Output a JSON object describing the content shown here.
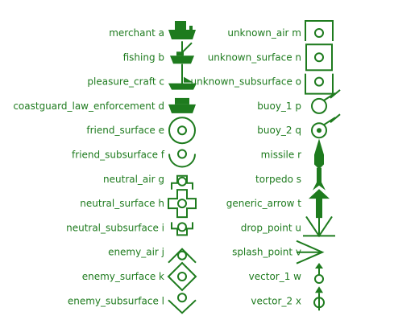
{
  "colors": {
    "symbol": "#1e7b1e"
  },
  "left_column": [
    {
      "label": "merchant a",
      "icon": "merchant-icon"
    },
    {
      "label": "fishing b",
      "icon": "fishing-icon"
    },
    {
      "label": "pleasure_craft c",
      "icon": "pleasure-craft-icon"
    },
    {
      "label": "coastguard_law_enforcement d",
      "icon": "coastguard-icon"
    },
    {
      "label": "friend_surface e",
      "icon": "friend-surface-icon"
    },
    {
      "label": "friend_subsurface f",
      "icon": "friend-subsurface-icon"
    },
    {
      "label": "neutral_air g",
      "icon": "neutral-air-icon"
    },
    {
      "label": "neutral_surface h",
      "icon": "neutral-surface-icon"
    },
    {
      "label": "neutral_subsurface i",
      "icon": "neutral-subsurface-icon"
    },
    {
      "label": "enemy_air j",
      "icon": "enemy-air-icon"
    },
    {
      "label": "enemy_surface k",
      "icon": "enemy-surface-icon"
    },
    {
      "label": "enemy_subsurface l",
      "icon": "enemy-subsurface-icon"
    }
  ],
  "right_column": [
    {
      "label": "unknown_air m",
      "icon": "unknown-air-icon"
    },
    {
      "label": "unknown_surface n",
      "icon": "unknown-surface-icon"
    },
    {
      "label": "unknown_subsurface o",
      "icon": "unknown-subsurface-icon"
    },
    {
      "label": "buoy_1 p",
      "icon": "buoy-1-icon"
    },
    {
      "label": "buoy_2 q",
      "icon": "buoy-2-icon"
    },
    {
      "label": "missile r",
      "icon": "missile-icon"
    },
    {
      "label": "torpedo s",
      "icon": "torpedo-icon"
    },
    {
      "label": "generic_arrow t",
      "icon": "generic-arrow-icon"
    },
    {
      "label": "drop_point u",
      "icon": "drop-point-icon"
    },
    {
      "label": "splash_point v",
      "icon": "splash-point-icon"
    },
    {
      "label": "vector_1 w",
      "icon": "vector-1-icon"
    },
    {
      "label": "vector_2 x",
      "icon": "vector-2-icon"
    }
  ]
}
